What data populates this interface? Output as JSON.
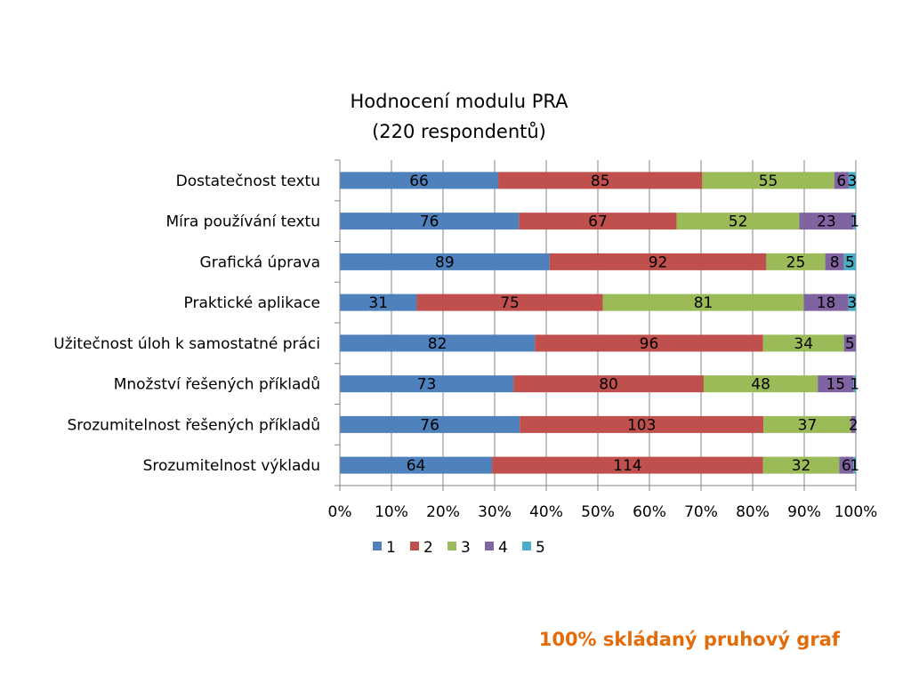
{
  "slide": {
    "caption": "100% skládaný pruhový graf",
    "caption_color": "#e36c0a"
  },
  "chart_data": {
    "type": "bar",
    "orientation": "horizontal",
    "stacking": "percent",
    "title_lines": [
      "Hodnocení modulu PRA",
      "(220 respondentů)"
    ],
    "categories": [
      "Dostatečnost textu",
      "Míra používání textu",
      "Grafická úprava",
      "Praktické aplikace",
      "Užitečnost úloh k samostatné práci",
      "Množství řešených příkladů",
      "Srozumitelnost řešených příkladů",
      "Srozumitelnost výkladu"
    ],
    "series": [
      {
        "name": "1",
        "color": "#4f81bd",
        "values": [
          66,
          76,
          89,
          31,
          82,
          73,
          76,
          64
        ]
      },
      {
        "name": "2",
        "color": "#c0504d",
        "values": [
          85,
          67,
          92,
          75,
          96,
          80,
          103,
          114
        ]
      },
      {
        "name": "3",
        "color": "#9bbb59",
        "values": [
          55,
          52,
          25,
          81,
          34,
          48,
          37,
          32
        ]
      },
      {
        "name": "4",
        "color": "#8064a2",
        "values": [
          6,
          23,
          8,
          18,
          5,
          15,
          2,
          6
        ]
      },
      {
        "name": "5",
        "color": "#4bacc6",
        "values": [
          3,
          1,
          5,
          3,
          0,
          1,
          0,
          1
        ]
      }
    ],
    "x_ticks": [
      "0%",
      "10%",
      "20%",
      "30%",
      "40%",
      "50%",
      "60%",
      "70%",
      "80%",
      "90%",
      "100%"
    ],
    "xlim": [
      0,
      100
    ],
    "grid": "vertical",
    "legend_position": "bottom"
  }
}
